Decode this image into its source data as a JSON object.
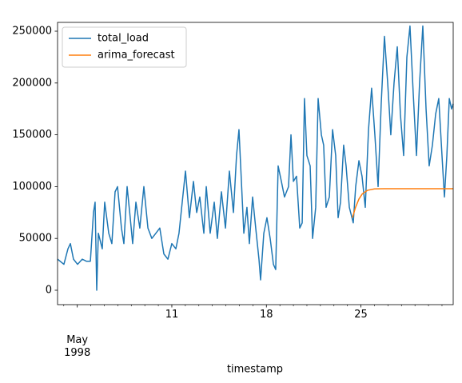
{
  "chart_data": {
    "type": "line",
    "xlabel": "timestamp",
    "xlim": [
      2.54,
      31.83
    ],
    "xticks": [
      {
        "value": 4,
        "label": "May\n1998"
      },
      11,
      18,
      25
    ],
    "xminorticks": [
      3,
      5,
      6,
      7,
      8,
      9,
      10,
      12,
      13,
      14,
      15,
      16,
      17,
      19,
      20,
      21,
      22,
      23,
      24,
      26,
      27,
      28,
      29,
      30,
      31
    ],
    "ylim": [
      -13900,
      258500
    ],
    "yticks": [
      0,
      50000,
      100000,
      150000,
      200000,
      250000
    ],
    "legend": "upper left",
    "series": [
      {
        "name": "total_load",
        "color": "#1f77b4",
        "x": [
          2.54,
          3.01,
          3.31,
          3.49,
          3.72,
          4.02,
          4.37,
          4.67,
          4.97,
          5.2,
          5.32,
          5.44,
          5.56,
          5.85,
          6.03,
          6.33,
          6.56,
          6.8,
          6.98,
          7.27,
          7.45,
          7.69,
          7.92,
          8.1,
          8.34,
          8.63,
          8.93,
          9.23,
          9.52,
          9.82,
          10.11,
          10.41,
          10.71,
          11.0,
          11.3,
          11.53,
          11.77,
          12.01,
          12.3,
          12.6,
          12.84,
          13.07,
          13.37,
          13.55,
          13.84,
          14.14,
          14.37,
          14.67,
          14.97,
          15.26,
          15.56,
          15.79,
          15.97,
          16.15,
          16.33,
          16.56,
          16.74,
          16.98,
          17.21,
          17.45,
          17.57,
          17.81,
          18.04,
          18.28,
          18.52,
          18.69,
          18.87,
          19.11,
          19.34,
          19.64,
          19.82,
          20.0,
          20.23,
          20.47,
          20.65,
          20.82,
          21.0,
          21.24,
          21.42,
          21.65,
          21.83,
          22.07,
          22.24,
          22.42,
          22.66,
          22.9,
          23.13,
          23.31,
          23.49,
          23.72,
          23.9,
          24.14,
          24.43,
          24.61,
          24.85,
          25.08,
          25.32,
          25.56,
          25.79,
          26.03,
          26.27,
          26.5,
          26.74,
          26.98,
          27.21,
          27.45,
          27.69,
          27.92,
          28.16,
          28.4,
          28.63,
          28.87,
          29.11,
          29.34,
          29.58,
          29.82,
          30.05,
          30.29,
          30.53,
          30.76,
          31.0,
          31.18,
          31.36,
          31.54,
          31.71,
          31.83
        ],
        "values": [
          30000,
          25000,
          40000,
          45000,
          30000,
          25000,
          30000,
          28000,
          28000,
          75000,
          85000,
          0,
          55000,
          40000,
          85000,
          55000,
          45000,
          95000,
          100000,
          60000,
          45000,
          100000,
          70000,
          45000,
          85000,
          60000,
          100000,
          60000,
          50000,
          55000,
          60000,
          35000,
          30000,
          45000,
          40000,
          55000,
          85000,
          115000,
          70000,
          105000,
          75000,
          90000,
          55000,
          100000,
          55000,
          85000,
          50000,
          95000,
          60000,
          115000,
          75000,
          130000,
          155000,
          105000,
          55000,
          80000,
          45000,
          90000,
          60000,
          30000,
          10000,
          55000,
          70000,
          50000,
          25000,
          20000,
          120000,
          105000,
          90000,
          100000,
          150000,
          105000,
          110000,
          60000,
          65000,
          185000,
          130000,
          120000,
          50000,
          80000,
          185000,
          150000,
          140000,
          80000,
          90000,
          155000,
          130000,
          70000,
          85000,
          140000,
          120000,
          80000,
          65000,
          100000,
          125000,
          110000,
          80000,
          155000,
          195000,
          150000,
          100000,
          180000,
          245000,
          200000,
          150000,
          200000,
          235000,
          170000,
          130000,
          225000,
          255000,
          190000,
          130000,
          200000,
          255000,
          175000,
          120000,
          140000,
          170000,
          185000,
          130000,
          90000,
          130000,
          185000,
          175000,
          180000
        ]
      },
      {
        "name": "arima_forecast",
        "color": "#ff7f0e",
        "x": [
          24.37,
          24.6,
          24.85,
          25.1,
          25.5,
          26.0,
          26.7,
          31.83
        ],
        "values": [
          70000,
          80000,
          88000,
          93000,
          96500,
          97800,
          98000,
          98000
        ]
      }
    ]
  }
}
